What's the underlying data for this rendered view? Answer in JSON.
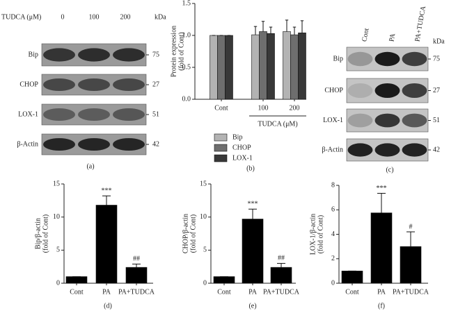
{
  "blots": [
    {
      "header_title": "TUDCA (μM)",
      "lanes": [
        "0",
        "100",
        "200"
      ],
      "unit": "kDa",
      "rows": [
        {
          "label": "Bip",
          "kda": 75
        },
        {
          "label": "CHOP",
          "kda": 27
        },
        {
          "label": "LOX-1",
          "kda": 51
        },
        {
          "label": "β-Actin",
          "kda": 42
        }
      ],
      "panel_label": "(a)"
    },
    {
      "lanes": [
        "Cont",
        "PA",
        "PA+TUDCA"
      ],
      "unit": "kDa",
      "rows": [
        {
          "label": "Bip",
          "kda": 75
        },
        {
          "label": "CHOP",
          "kda": 27
        },
        {
          "label": "LOX-1",
          "kda": 51
        },
        {
          "label": "β-Actin",
          "kda": 42
        }
      ],
      "panel_label": "(c)"
    }
  ],
  "chart_data": [
    {
      "type": "bar",
      "panel_label": "(b)",
      "ylabel": [
        "Protein expression",
        "(fold of Cont)"
      ],
      "categories": [
        "Cont",
        "100",
        "200"
      ],
      "group_label": "TUDCA (μM)",
      "series": [
        {
          "name": "Bip",
          "color": "#b3b3b3",
          "values": [
            1.0,
            1.01,
            1.06
          ],
          "errors": [
            0,
            0.13,
            0.18
          ]
        },
        {
          "name": "CHOP",
          "color": "#6e6e6e",
          "values": [
            1.0,
            1.06,
            1.01
          ],
          "errors": [
            0,
            0.16,
            0.12
          ]
        },
        {
          "name": "LOX-1",
          "color": "#383838",
          "values": [
            1.0,
            1.03,
            1.04
          ],
          "errors": [
            0,
            0.1,
            0.19
          ]
        }
      ],
      "ylim": [
        0,
        1.5
      ],
      "yticks": [
        {
          "value": 0,
          "label": "0.0"
        },
        {
          "value": 0.5,
          "label": "0.5"
        },
        {
          "value": 1,
          "label": "1.0"
        },
        {
          "value": 1.5,
          "label": "1.5"
        }
      ]
    },
    {
      "type": "bar",
      "panel_label": "(d)",
      "ylabel": [
        "Bip/β-actin",
        "(fold of Cont)"
      ],
      "categories": [
        "Cont",
        "PA",
        "PA+TUDCA"
      ],
      "color": "#000000",
      "values": [
        1.0,
        11.8,
        2.4
      ],
      "errors": [
        0,
        1.4,
        0.5
      ],
      "annotations": [
        null,
        "***",
        "##"
      ],
      "ylim": [
        0,
        15
      ],
      "yticks": [
        0,
        5,
        10,
        15
      ]
    },
    {
      "type": "bar",
      "panel_label": "(e)",
      "ylabel": [
        "CHOP/β-actin",
        "(fold of Cont)"
      ],
      "categories": [
        "Cont",
        "PA",
        "PA+TUDCA"
      ],
      "color": "#000000",
      "values": [
        1.0,
        9.7,
        2.4
      ],
      "errors": [
        0,
        1.5,
        0.6
      ],
      "annotations": [
        null,
        "***",
        "##"
      ],
      "ylim": [
        0,
        15
      ],
      "yticks": [
        0,
        5,
        10,
        15
      ]
    },
    {
      "type": "bar",
      "panel_label": "(f)",
      "ylabel": [
        "LOX-1/β-actin",
        "(fold of Cont)"
      ],
      "categories": [
        "Cont",
        "PA",
        "PA+TUDCA"
      ],
      "color": "#000000",
      "values": [
        1.0,
        5.75,
        3.0
      ],
      "errors": [
        0,
        1.6,
        1.2
      ],
      "annotations": [
        null,
        "***",
        "#"
      ],
      "ylim": [
        0,
        8
      ],
      "yticks": [
        0,
        2,
        4,
        6,
        8
      ]
    }
  ]
}
